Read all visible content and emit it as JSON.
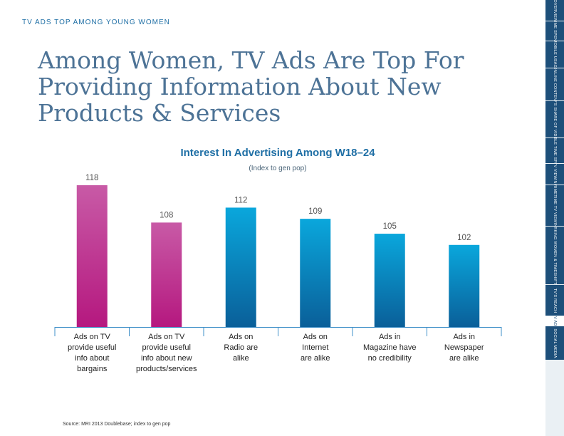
{
  "kicker": "TV ADS TOP AMONG YOUNG WOMEN",
  "headline": {
    "line1": "Among Women, TV Ads Are Top For",
    "line2": "Providing Information About New",
    "line3": "Products & Services"
  },
  "source": "Source: MRI 2013 Doublebase; index to gen pop",
  "colors": {
    "tv_top": "#c85aa6",
    "tv_bottom": "#b5187f",
    "other_top": "#0aa7dc",
    "other_bottom": "#0a5f99",
    "axis": "#3e8fc8",
    "headline": "#4d7396",
    "sidebar": "#1d4f7a"
  },
  "chart_data": {
    "type": "bar",
    "title": "Interest In Advertising Among W18–24",
    "subtitle": "(Index to gen pop)",
    "categories": [
      "Ads on TV provide useful info about bargains",
      "Ads on TV provide useful info about new products/services",
      "Ads on Radio are alike",
      "Ads on Internet are alike",
      "Ads in Magazine have no credibility",
      "Ads in Newspaper are alike"
    ],
    "category_lines": [
      [
        "Ads on TV",
        "provide useful",
        "info about",
        "bargains"
      ],
      [
        "Ads on TV",
        "provide useful",
        "info about new",
        "products/services"
      ],
      [
        "Ads on",
        "Radio are",
        "alike"
      ],
      [
        "Ads on",
        "Internet",
        "are alike"
      ],
      [
        "Ads in",
        "Magazine have",
        "no credibility"
      ],
      [
        "Ads in",
        "Newspaper",
        "are alike"
      ]
    ],
    "values": [
      118,
      108,
      112,
      109,
      105,
      102
    ],
    "value_labels": [
      "118",
      "108",
      "112",
      "109",
      "105",
      "102"
    ],
    "bar_color_groups": [
      "tv",
      "tv",
      "other",
      "other",
      "other",
      "other"
    ],
    "ylim": [
      80,
      120
    ],
    "grid": false,
    "legend": "none"
  },
  "sidebar": {
    "items": [
      {
        "label": "OVERVIEW",
        "active": false
      },
      {
        "label": "TIME SPENT",
        "active": false
      },
      {
        "label": "MOBILE USAGE",
        "active": false
      },
      {
        "label": "ONLINE CONTENT",
        "active": false
      },
      {
        "label": "TV'S SHARE OF VIDEO",
        "active": false
      },
      {
        "label": "CABLE TIME SPENT",
        "active": false
      },
      {
        "label": "TV VIEWING",
        "active": false
      },
      {
        "label": "PRIMETIME TV VIEWING",
        "active": false
      },
      {
        "label": "WORKING WOMEN & TIMESHIFTING",
        "active": false
      },
      {
        "label": "TV'S REACH",
        "active": false
      },
      {
        "label": "TV ADS",
        "active": true
      },
      {
        "label": "SOCIAL MEDIA",
        "active": false
      }
    ]
  }
}
